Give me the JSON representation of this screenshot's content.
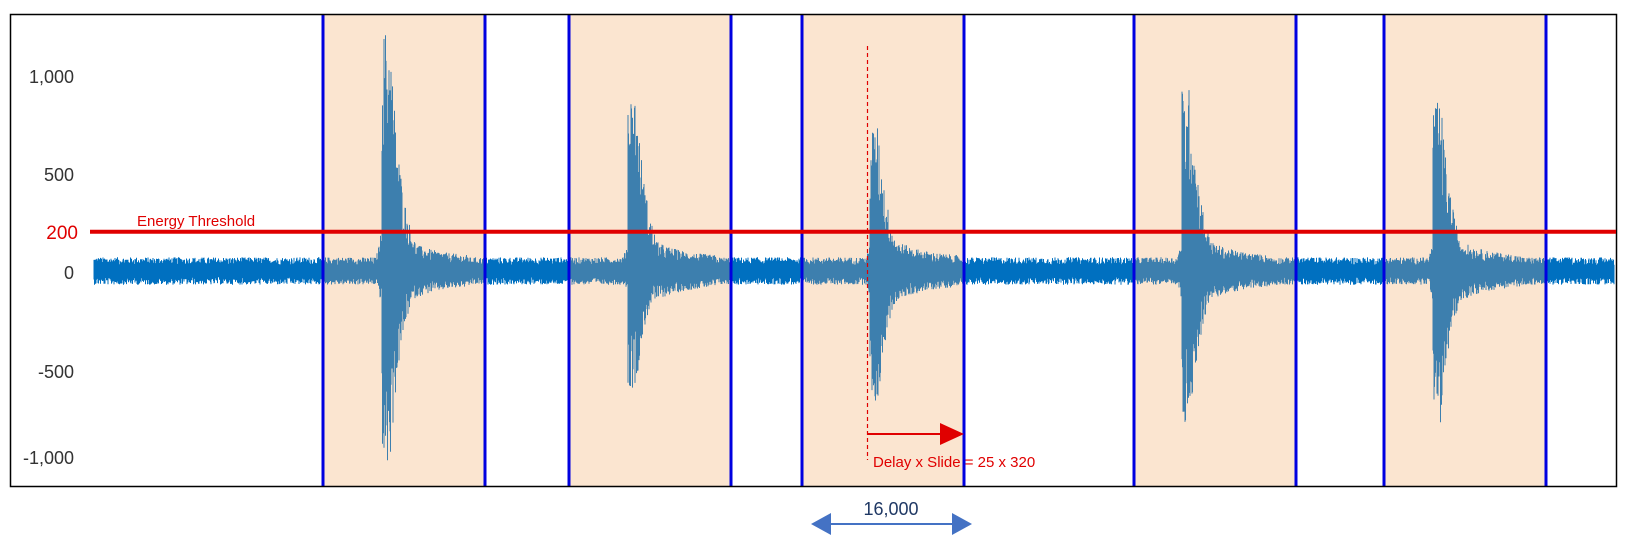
{
  "chart_data": {
    "type": "line",
    "title": "",
    "xlabel": "",
    "ylabel": "",
    "ylim": [
      -1100,
      1300
    ],
    "grid": false,
    "series": [
      {
        "color": "#0070c0",
        "color_in_window": "#3d7fae",
        "baseline_amplitude": 70,
        "bursts": [
          {
            "peak_max": 1240,
            "peak_min": -1010
          },
          {
            "peak_max": 920,
            "peak_min": -600
          },
          {
            "peak_max": 740,
            "peak_min": -680
          },
          {
            "peak_max": 940,
            "peak_min": -820
          },
          {
            "peak_max": 860,
            "peak_min": -780
          }
        ]
      }
    ],
    "y_ticks": [
      {
        "value": 1000,
        "label": "1,000"
      },
      {
        "value": 500,
        "label": "500"
      },
      {
        "value": 0,
        "label": "0"
      },
      {
        "value": -500,
        "label": "-500"
      },
      {
        "value": -1000,
        "label": "-1,000"
      }
    ],
    "threshold": {
      "value": 200,
      "value_label": "200",
      "label": "Energy Threshold",
      "color": "#e00000"
    },
    "windows": {
      "count": 5,
      "fill": "#fbe5d0",
      "border_color": "#0000e0"
    },
    "delay_annotation": {
      "text": "Delay x Slide = 25 x 320",
      "color": "#e00000"
    },
    "span_annotation": {
      "label": "16,000",
      "color": "#4472c4",
      "text_color": "#1f3864"
    }
  }
}
